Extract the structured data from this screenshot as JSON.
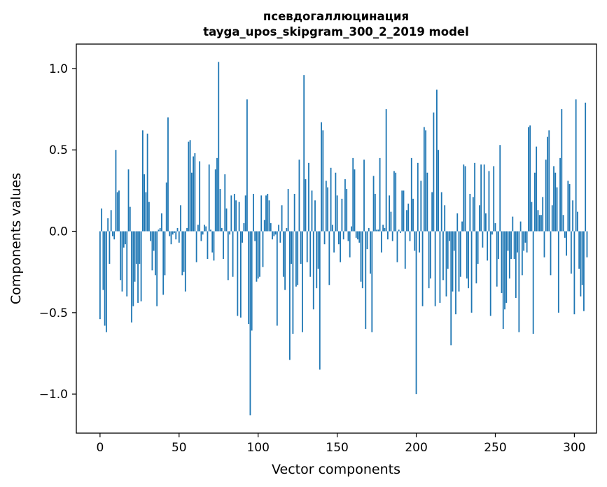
{
  "chart_data": {
    "type": "bar",
    "title_line1": "псевдогаллюцинация",
    "title_line2": "tayga_upos_skipgram_300_2_2019 model",
    "xlabel": "Vector components",
    "ylabel": "Components values",
    "xlim": [
      -15,
      314
    ],
    "ylim": [
      -1.24,
      1.15
    ],
    "xticks": [
      0,
      50,
      100,
      150,
      200,
      250,
      300
    ],
    "xtick_labels": [
      "0",
      "50",
      "100",
      "150",
      "200",
      "250",
      "300"
    ],
    "yticks": [
      -1.0,
      -0.5,
      0.0,
      0.5,
      1.0
    ],
    "ytick_labels": [
      "−1.0",
      "−0.5",
      "0.0",
      "0.5",
      "1.0"
    ],
    "bar_color": "#1f77b4",
    "values": [
      -0.54,
      0.14,
      -0.36,
      -0.58,
      -0.62,
      0.08,
      -0.2,
      0.13,
      -0.03,
      -0.05,
      0.5,
      0.24,
      0.25,
      -0.3,
      -0.37,
      -0.1,
      -0.08,
      -0.4,
      0.38,
      0.15,
      -0.56,
      -0.46,
      -0.31,
      -0.2,
      -0.44,
      -0.2,
      -0.43,
      0.62,
      0.35,
      0.24,
      0.6,
      0.18,
      -0.06,
      -0.24,
      -0.12,
      -0.27,
      -0.46,
      0.01,
      0.02,
      0.11,
      -0.39,
      -0.27,
      0.3,
      0.7,
      -0.03,
      -0.08,
      -0.02,
      -0.01,
      -0.05,
      0.02,
      -0.07,
      0.16,
      -0.27,
      -0.25,
      -0.37,
      0.02,
      0.55,
      0.56,
      0.36,
      0.46,
      0.48,
      -0.19,
      0.04,
      0.43,
      -0.06,
      -0.02,
      0.04,
      0.03,
      -0.17,
      0.41,
      0.01,
      -0.13,
      -0.18,
      0.38,
      0.45,
      1.04,
      0.26,
      0.02,
      -0.17,
      0.35,
      0.14,
      -0.3,
      -0.02,
      0.22,
      -0.28,
      0.23,
      0.19,
      -0.52,
      0.18,
      -0.53,
      -0.07,
      0.05,
      0.22,
      0.81,
      -0.57,
      -1.13,
      -0.61,
      0.23,
      -0.06,
      -0.31,
      -0.29,
      -0.28,
      0.22,
      -0.22,
      0.07,
      0.22,
      0.23,
      0.19,
      0.05,
      -0.05,
      -0.03,
      -0.02,
      -0.58,
      0.04,
      -0.07,
      0.16,
      -0.28,
      -0.36,
      0.02,
      0.26,
      -0.79,
      -0.2,
      -0.63,
      0.23,
      -0.34,
      -0.33,
      0.44,
      -0.2,
      -0.62,
      0.96,
      0.32,
      -0.19,
      0.42,
      -0.28,
      0.25,
      -0.48,
      0.19,
      -0.35,
      -0.23,
      -0.85,
      0.67,
      0.62,
      -0.08,
      0.31,
      0.27,
      -0.33,
      0.39,
      0.04,
      -0.13,
      0.36,
      0.22,
      -0.08,
      -0.19,
      0.2,
      -0.05,
      0.32,
      0.26,
      -0.06,
      -0.16,
      0.03,
      0.45,
      0.38,
      -0.04,
      -0.05,
      -0.07,
      -0.31,
      -0.35,
      0.44,
      -0.6,
      -0.11,
      0.02,
      -0.26,
      -0.62,
      0.34,
      0.23,
      0.01,
      0.01,
      0.45,
      -0.13,
      0.04,
      0.02,
      0.75,
      -0.05,
      0.22,
      0.12,
      -0.06,
      0.37,
      0.36,
      -0.19,
      0.01,
      -0.01,
      0.25,
      0.25,
      -0.23,
      0.13,
      0.17,
      -0.06,
      0.45,
      0.2,
      -0.12,
      -1.0,
      0.42,
      -0.13,
      0.31,
      -0.46,
      0.64,
      0.62,
      0.36,
      -0.35,
      -0.29,
      0.24,
      0.73,
      -0.46,
      0.87,
      0.5,
      -0.44,
      0.24,
      -0.3,
      0.16,
      -0.4,
      -0.23,
      -0.06,
      -0.7,
      -0.37,
      -0.12,
      -0.51,
      0.11,
      -0.37,
      -0.28,
      0.06,
      0.41,
      0.4,
      -0.29,
      -0.35,
      0.23,
      -0.5,
      0.21,
      0.42,
      -0.32,
      -0.2,
      0.16,
      0.41,
      -0.1,
      0.41,
      0.11,
      -0.18,
      0.37,
      -0.52,
      -0.02,
      0.4,
      0.05,
      -0.34,
      -0.17,
      0.53,
      -0.38,
      -0.6,
      -0.48,
      -0.44,
      -0.12,
      -0.29,
      -0.17,
      0.09,
      -0.17,
      -0.41,
      -0.13,
      -0.62,
      0.06,
      -0.27,
      -0.12,
      -0.07,
      -0.13,
      0.64,
      0.65,
      0.18,
      -0.63,
      0.36,
      0.52,
      0.13,
      0.1,
      0.1,
      0.21,
      -0.16,
      0.44,
      0.58,
      0.62,
      -0.27,
      0.16,
      0.4,
      0.36,
      0.27,
      -0.5,
      0.45,
      0.75,
      0.1,
      -0.04,
      -0.15,
      0.31,
      0.29,
      -0.26,
      0.19,
      -0.51,
      0.81,
      0.12,
      -0.23,
      -0.4,
      -0.33,
      -0.49,
      0.79,
      -0.16
    ]
  }
}
